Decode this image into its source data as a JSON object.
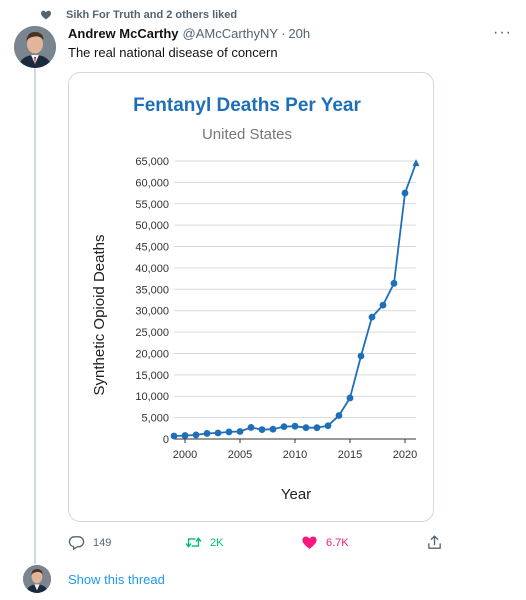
{
  "social_context": {
    "text": "Sikh For Truth and 2 others liked",
    "icon": "heart-icon"
  },
  "tweet": {
    "author_name": "Andrew McCarthy",
    "handle": "@AMcCarthyNY",
    "separator": "·",
    "time": "20h",
    "more_icon": "more-icon",
    "more_label": "···",
    "text": "The real national disease of concern"
  },
  "chart_data": {
    "type": "line",
    "title": "Fentanyl Deaths Per Year",
    "subtitle": "United States",
    "xlabel": "Year",
    "ylabel": "Synthetic Opioid Deaths",
    "xlim": [
      1999,
      2021
    ],
    "ylim": [
      0,
      65000
    ],
    "x_ticks": [
      2000,
      2005,
      2010,
      2015,
      2020
    ],
    "x_tick_labels": [
      "2000",
      "2005",
      "2010",
      "2015",
      "2020"
    ],
    "y_ticks": [
      0,
      5000,
      10000,
      15000,
      20000,
      25000,
      30000,
      35000,
      40000,
      45000,
      50000,
      55000,
      60000,
      65000
    ],
    "y_tick_labels": [
      "0",
      "5,000",
      "10,000",
      "15,000",
      "20,000",
      "25,000",
      "30,000",
      "35,000",
      "40,000",
      "45,000",
      "50,000",
      "55,000",
      "60,000",
      "65,000"
    ],
    "grid": "horizontal",
    "line_color": "#1f6fb8",
    "title_color": "#1f6fb8",
    "series": [
      {
        "x": [
          1999,
          2000,
          2001,
          2002,
          2003,
          2004,
          2005,
          2006,
          2007,
          2008,
          2009,
          2010,
          2011,
          2012,
          2013,
          2014,
          2015,
          2016,
          2017,
          2018,
          2019,
          2020,
          2021
        ],
        "values": [
          700,
          800,
          950,
          1300,
          1400,
          1650,
          1750,
          2700,
          2200,
          2300,
          2900,
          3000,
          2650,
          2650,
          3100,
          5500,
          9600,
          19400,
          28500,
          31300,
          36400,
          57500,
          64500
        ]
      }
    ]
  },
  "actions": {
    "reply_count": "149",
    "retweet_count": "2K",
    "like_count": "6.7K",
    "reply_icon": "reply-icon",
    "retweet_icon": "retweet-icon",
    "like_icon": "heart-icon",
    "share_icon": "share-icon"
  },
  "show_thread": "Show this thread",
  "colors": {
    "accent": "#1d9bf0",
    "secondary_text": "#536471",
    "like": "#f91880",
    "retweet": "#00ba7c"
  }
}
